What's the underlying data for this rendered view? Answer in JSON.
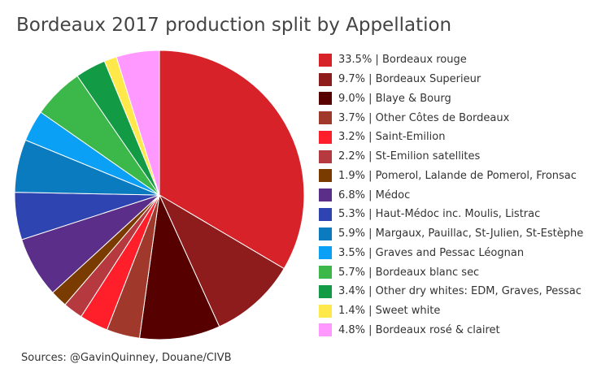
{
  "chart_data": {
    "type": "pie",
    "title": "Bordeaux 2017 production split by Appellation",
    "legend_position": "right",
    "start_angle_deg": 0,
    "direction": "clockwise",
    "slices": [
      {
        "label": "33.5% | Bordeaux rouge",
        "value": 33.5,
        "color": "#d7222a"
      },
      {
        "label": "9.7% | Bordeaux Superieur",
        "value": 9.7,
        "color": "#8e1c1c"
      },
      {
        "label": "9.0% | Blaye & Bourg",
        "value": 9.0,
        "color": "#560000"
      },
      {
        "label": "3.7% | Other Côtes de Bordeaux",
        "value": 3.7,
        "color": "#a0392c"
      },
      {
        "label": "3.2% | Saint-Emilion",
        "value": 3.2,
        "color": "#ff1f2b"
      },
      {
        "label": "2.2% | St-Emilion satellites",
        "value": 2.2,
        "color": "#b5393e"
      },
      {
        "label": "1.9% | Pomerol, Lalande de Pomerol, Fronsac",
        "value": 1.9,
        "color": "#7a3b00"
      },
      {
        "label": "6.8% | Médoc",
        "value": 6.8,
        "color": "#5b2e8a"
      },
      {
        "label": "5.3% | Haut-Médoc inc. Moulis, Listrac",
        "value": 5.3,
        "color": "#2e44b0"
      },
      {
        "label": "5.9% | Margaux, Pauillac, St-Julien, St-Estèphe",
        "value": 5.9,
        "color": "#0b7bbf"
      },
      {
        "label": "3.5% | Graves and Pessac Léognan",
        "value": 3.5,
        "color": "#0aa0f5"
      },
      {
        "label": "5.7% | Bordeaux blanc sec",
        "value": 5.7,
        "color": "#3cb84a"
      },
      {
        "label": "3.4% | Other dry whites: EDM, Graves, Pessac",
        "value": 3.4,
        "color": "#129a45"
      },
      {
        "label": "1.4% | Sweet white",
        "value": 1.4,
        "color": "#ffe94a"
      },
      {
        "label": "4.8% | Bordeaux rosé & clairet",
        "value": 4.8,
        "color": "#ff99ff"
      }
    ]
  },
  "footer": {
    "source": "Sources: @GavinQuinney, Douane/CIVB"
  }
}
